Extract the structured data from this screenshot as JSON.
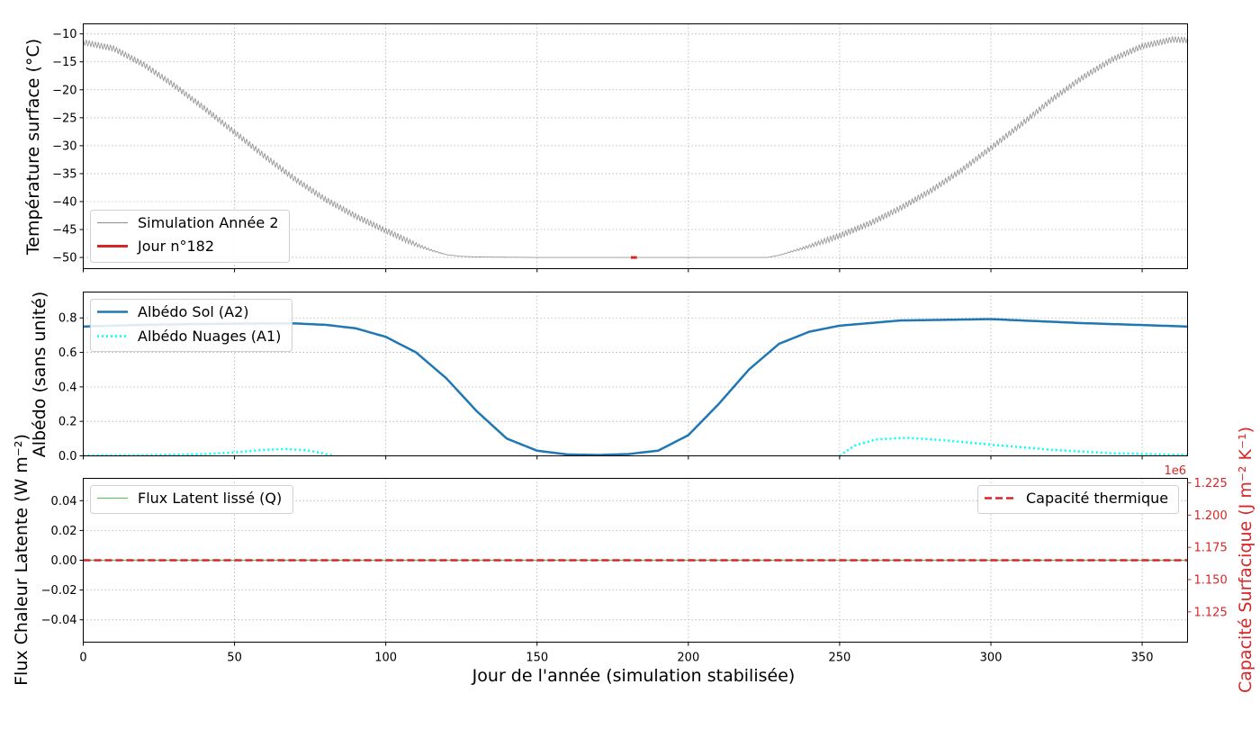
{
  "chart_data": [
    {
      "type": "line",
      "ylabel": "Température surface (°C)",
      "xlim": [
        0,
        365
      ],
      "ylim": [
        -52,
        -8.2
      ],
      "xticks": [
        0,
        50,
        100,
        150,
        200,
        250,
        300,
        350
      ],
      "yticks": [
        -10,
        -15,
        -20,
        -25,
        -30,
        -35,
        -40,
        -45,
        -50
      ],
      "grid": true,
      "legend_loc": "lower-left",
      "series": [
        {
          "name": "Simulation Année 2",
          "color": "#999999",
          "x": [
            0,
            10,
            20,
            30,
            40,
            50,
            60,
            70,
            80,
            90,
            100,
            110,
            115,
            120,
            125,
            130,
            150,
            170,
            200,
            226,
            230,
            240,
            250,
            260,
            270,
            280,
            290,
            300,
            310,
            320,
            330,
            340,
            350,
            360,
            365
          ],
          "y": [
            -11.5,
            -12.6,
            -15.5,
            -19.2,
            -23.3,
            -27.6,
            -31.9,
            -36.0,
            -39.6,
            -42.6,
            -45.2,
            -47.7,
            -48.7,
            -49.5,
            -49.8,
            -49.9,
            -50.0,
            -50.0,
            -50.0,
            -50.0,
            -49.6,
            -48.0,
            -46.1,
            -43.9,
            -41.2,
            -38.1,
            -34.5,
            -30.4,
            -26.2,
            -21.8,
            -17.9,
            -14.6,
            -12.2,
            -11.0,
            -11.1
          ],
          "oscillation_amplitude": 1.1
        },
        {
          "name": "Jour n°182",
          "color": "#d62728",
          "x": [
            181,
            183
          ],
          "y": [
            -50.0,
            -50.0
          ]
        }
      ]
    },
    {
      "type": "line",
      "ylabel": "Albédo (sans unité)",
      "xlim": [
        0,
        365
      ],
      "ylim": [
        0,
        0.95
      ],
      "yticks": [
        "0.0",
        "0.2",
        "0.4",
        "0.6",
        "0.8"
      ],
      "grid": true,
      "legend_loc": "upper-left",
      "series": [
        {
          "name": "Albédo Sol (A2)",
          "color": "#1f77b4",
          "style": "solid",
          "x": [
            0,
            20,
            40,
            60,
            70,
            80,
            90,
            100,
            110,
            120,
            130,
            140,
            150,
            160,
            170,
            180,
            190,
            200,
            210,
            220,
            230,
            240,
            250,
            270,
            300,
            330,
            365
          ],
          "y": [
            0.75,
            0.76,
            0.765,
            0.768,
            0.768,
            0.76,
            0.74,
            0.69,
            0.6,
            0.45,
            0.26,
            0.1,
            0.03,
            0.008,
            0.005,
            0.01,
            0.03,
            0.12,
            0.3,
            0.5,
            0.65,
            0.72,
            0.755,
            0.785,
            0.793,
            0.77,
            0.75
          ]
        },
        {
          "name": "Albédo Nuages (A1)",
          "color": "#00ffff",
          "style": "dotted",
          "segments": [
            {
              "x": [
                0,
                20,
                40,
                50,
                60,
                67,
                75,
                83
              ],
              "y": [
                0.002,
                0.004,
                0.01,
                0.02,
                0.035,
                0.04,
                0.03,
                0.0
              ]
            },
            {
              "x": [
                250,
                255,
                262,
                272,
                285,
                300,
                320,
                340,
                365
              ],
              "y": [
                0.0,
                0.06,
                0.095,
                0.105,
                0.09,
                0.065,
                0.035,
                0.015,
                0.005
              ]
            }
          ]
        }
      ]
    },
    {
      "type": "line",
      "xlabel": "Jour de l'année (simulation stabilisée)",
      "ylabel": "Flux Chaleur Latente (W m⁻²)",
      "ylabel_right": "Capacité Surfacique (J m⁻² K⁻¹)",
      "right_axis_color": "#d62728",
      "right_offset_label": "1e6",
      "xlim": [
        0,
        365
      ],
      "ylim": [
        -0.055,
        0.055
      ],
      "yticks": [
        "0.04",
        "0.02",
        "0.00",
        "−0.02",
        "−0.04"
      ],
      "right_yticks": [
        "1.225",
        "1.200",
        "1.175",
        "1.150",
        "1.125"
      ],
      "right_ylim": [
        1.1015,
        1.2285
      ],
      "xticks": [
        "0",
        "50",
        "100",
        "150",
        "200",
        "250",
        "300",
        "350"
      ],
      "grid": true,
      "series": [
        {
          "name": "Flux Latent lissé (Q)",
          "color": "#2ca02c",
          "x": [
            0,
            365
          ],
          "y": [
            0,
            0
          ],
          "axis": "left",
          "legend_loc": "upper-left"
        },
        {
          "name": "Capacité thermique",
          "color": "#d62728",
          "style": "dashed",
          "x": [
            0,
            365
          ],
          "y": [
            1.165,
            1.165
          ],
          "axis": "right",
          "legend_loc": "upper-right"
        }
      ]
    }
  ]
}
